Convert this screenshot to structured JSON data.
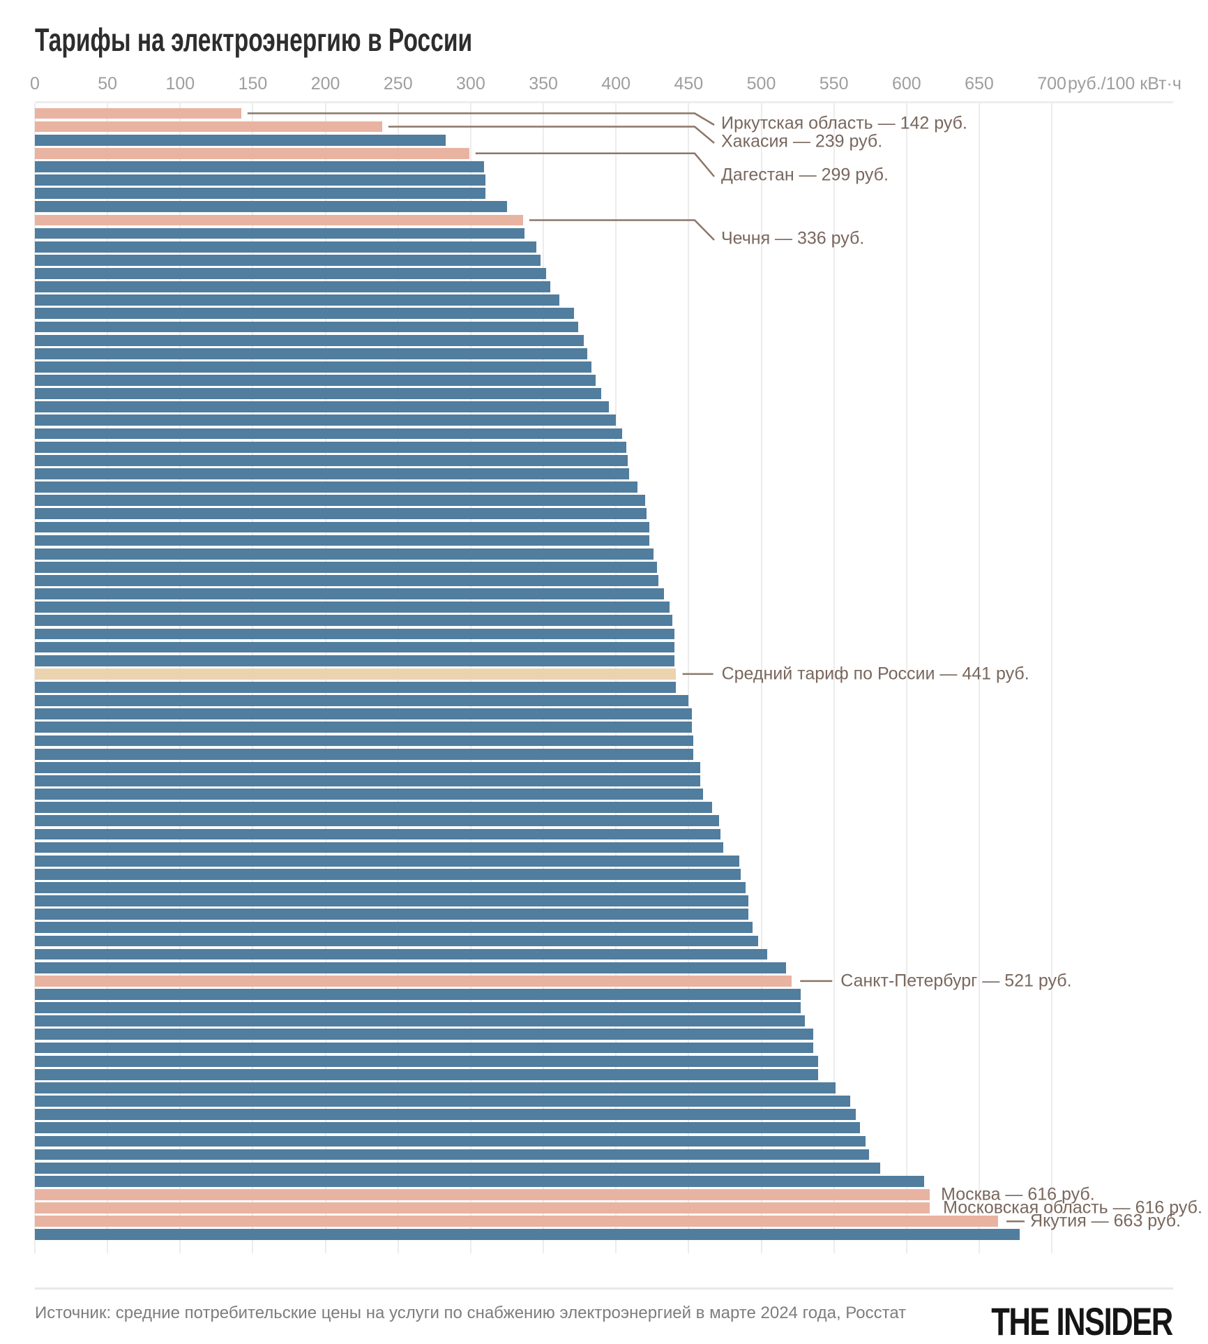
{
  "title": "Тарифы на электроэнергию в России",
  "axis": {
    "ticks": [
      "0",
      "50",
      "100",
      "150",
      "200",
      "250",
      "300",
      "350",
      "400",
      "450",
      "500",
      "550",
      "600",
      "650",
      "700"
    ],
    "unit_label": "руб./100 кВт·ч"
  },
  "chart_data": {
    "type": "bar",
    "orientation": "horizontal",
    "title": "Тарифы на электроэнергию в России",
    "xlabel": "руб./100 кВт·ч",
    "ylabel": "",
    "xlim": [
      0,
      700
    ],
    "grid": true,
    "sort": "ascending",
    "values": [
      142,
      239,
      283,
      299,
      309,
      310,
      310,
      325,
      336,
      337,
      345,
      348,
      352,
      355,
      361,
      371,
      374,
      378,
      380,
      383,
      386,
      390,
      395,
      400,
      404,
      407,
      408,
      409,
      415,
      420,
      421,
      423,
      423,
      426,
      428,
      429,
      433,
      437,
      439,
      440,
      440,
      440,
      441,
      441,
      450,
      452,
      452,
      453,
      453,
      458,
      458,
      460,
      466,
      471,
      472,
      474,
      485,
      486,
      489,
      491,
      491,
      494,
      498,
      504,
      517,
      521,
      527,
      527,
      530,
      536,
      536,
      539,
      539,
      551,
      561,
      565,
      568,
      572,
      574,
      582,
      612,
      616,
      616,
      663,
      678
    ],
    "average_bar_index": 42,
    "highlight_bar_indices": [
      0,
      1,
      3,
      8,
      65,
      81,
      82,
      83
    ],
    "colors": {
      "bar": "#517d9e",
      "highlight": "#e9b3a2",
      "average": "#ebd3ae",
      "connector": "#8c7668",
      "annotation_text": "#79675d",
      "grid": "#ececec"
    }
  },
  "annotations": [
    {
      "bar_index": 0,
      "region": "Иркутская область",
      "value": 142,
      "label": "Иркутская область — 142 руб."
    },
    {
      "bar_index": 1,
      "region": "Хакасия",
      "value": 239,
      "label": "Хакасия — 239 руб."
    },
    {
      "bar_index": 3,
      "region": "Дагестан",
      "value": 299,
      "label": "Дагестан — 299 руб."
    },
    {
      "bar_index": 8,
      "region": "Чечня",
      "value": 336,
      "label": "Чечня — 336 руб."
    },
    {
      "bar_index": 42,
      "region": "Средний тариф по России",
      "value": 441,
      "label": "Средний тариф по России — 441 руб."
    },
    {
      "bar_index": 65,
      "region": "Санкт-Петербург",
      "value": 521,
      "label": "Санкт-Петербург — 521 руб."
    },
    {
      "bar_index": 81,
      "region": "Москва",
      "value": 616,
      "label": "Москва — 616 руб."
    },
    {
      "bar_index": 82,
      "region": "Московская область",
      "value": 616,
      "label": "Московская область — 616 руб."
    },
    {
      "bar_index": 83,
      "region": "Якутия",
      "value": 663,
      "label": "Якутия — 663 руб."
    }
  ],
  "source": "Источник: средние потребительские цены на услуги по снабжению электроэнергией в марте 2024 года, Росстат",
  "logo": "THE INSIDER"
}
